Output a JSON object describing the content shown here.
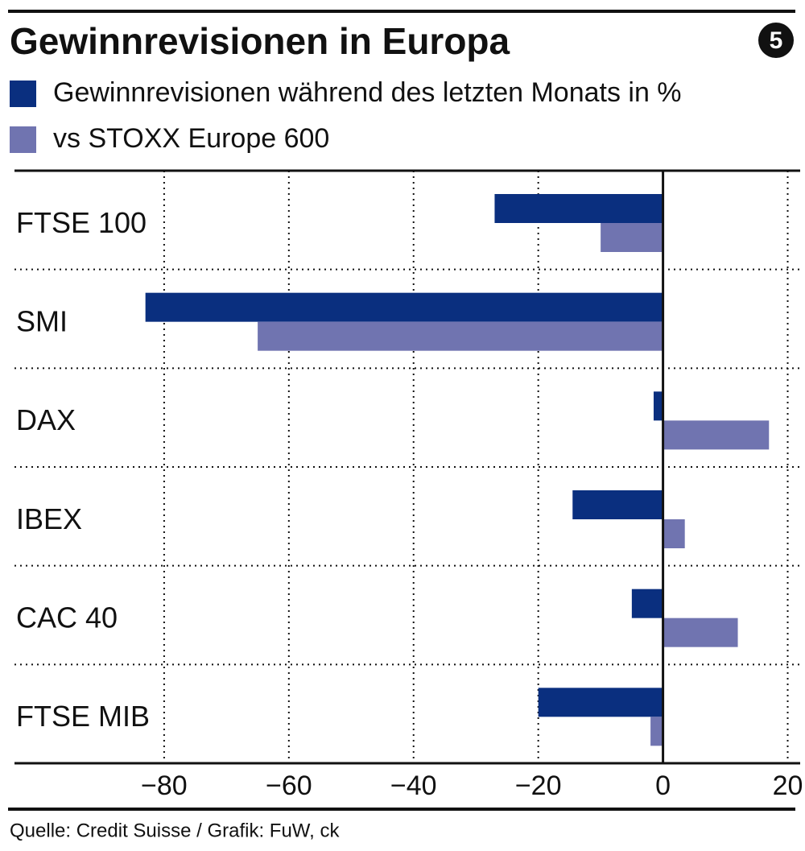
{
  "chart_data": {
    "type": "hbar",
    "title": "Gewinnrevisionen in Europa",
    "badge": "5",
    "source": "Quelle: Credit Suisse / Grafik: FuW, ck",
    "categories": [
      "FTSE 100",
      "SMI",
      "DAX",
      "IBEX",
      "CAC 40",
      "FTSE MIB"
    ],
    "series": [
      {
        "name": "Gewinnrevisionen während des letzten Monats in %",
        "color": "#0a2f7f",
        "values": [
          -27,
          -83,
          -1.5,
          -14.5,
          -5,
          -20
        ]
      },
      {
        "name": "vs STOXX Europe 600",
        "color": "#7074b0",
        "values": [
          -10,
          -65,
          17,
          3.5,
          12,
          -2
        ]
      }
    ],
    "xlim": [
      -104,
      22
    ],
    "xticks": [
      {
        "value": -80,
        "label": "−80"
      },
      {
        "value": -60,
        "label": "−60"
      },
      {
        "value": -40,
        "label": "−40"
      },
      {
        "value": -20,
        "label": "−20"
      },
      0,
      20
    ],
    "grid": true
  }
}
